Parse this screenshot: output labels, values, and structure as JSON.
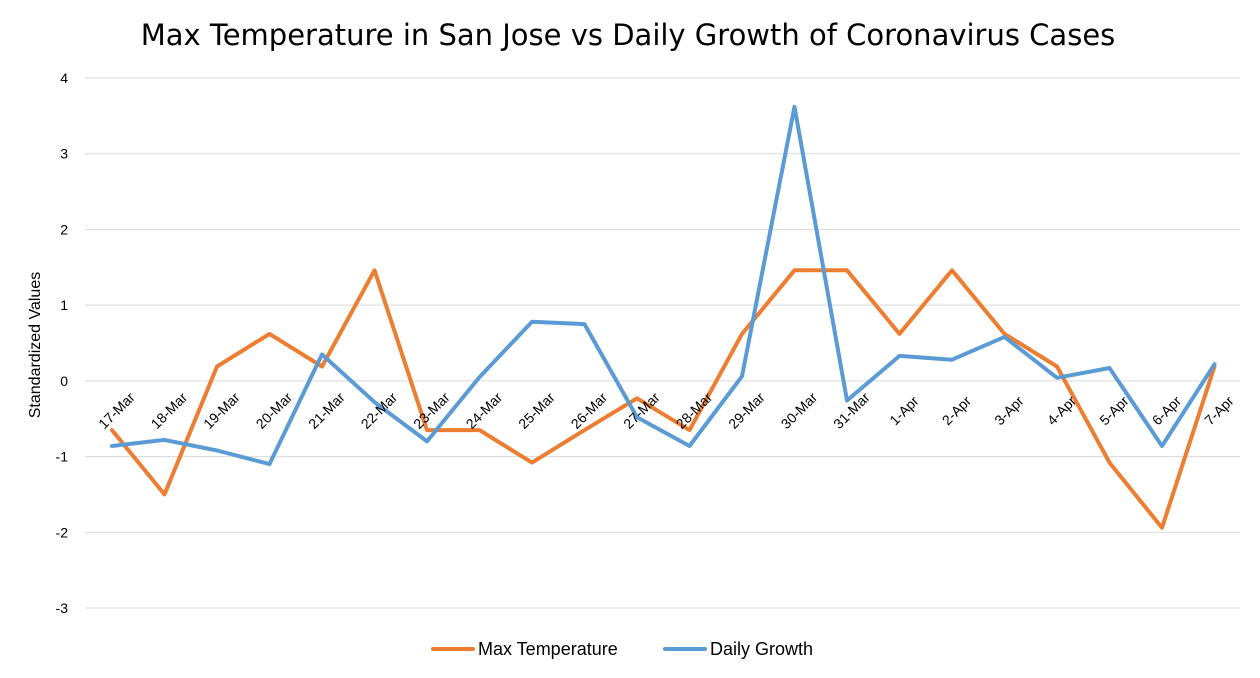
{
  "chart_data": {
    "type": "line",
    "title": "Max Temperature in San Jose vs Daily Growth of Coronavirus Cases",
    "xlabel": "",
    "ylabel": "Standardized Values",
    "ylim": [
      -3,
      4
    ],
    "yticks": [
      4,
      3,
      2,
      1,
      0,
      -1,
      -2,
      -3
    ],
    "grid": true,
    "legend_position": "bottom",
    "categories": [
      "17-Mar",
      "18-Mar",
      "19-Mar",
      "20-Mar",
      "21-Mar",
      "22-Mar",
      "23-Mar",
      "24-Mar",
      "25-Mar",
      "26-Mar",
      "27-Mar",
      "28-Mar",
      "29-Mar",
      "30-Mar",
      "31-Mar",
      "1-Apr",
      "2-Apr",
      "3-Apr",
      "4-Apr",
      "5-Apr",
      "6-Apr",
      "7-Apr"
    ],
    "series": [
      {
        "name": "Max Temperature",
        "color": "#ed7d31",
        "values": [
          -0.65,
          -1.5,
          0.19,
          0.62,
          0.19,
          1.46,
          -0.65,
          -0.65,
          -1.08,
          -0.65,
          -0.23,
          -0.65,
          0.62,
          1.46,
          1.46,
          0.62,
          1.46,
          0.62,
          0.19,
          -1.08,
          -1.94,
          0.19
        ]
      },
      {
        "name": "Daily Growth",
        "color": "#5b9bd5",
        "values": [
          -0.86,
          -0.78,
          -0.92,
          -1.1,
          0.35,
          -0.28,
          -0.8,
          0.05,
          0.78,
          0.75,
          -0.48,
          -0.86,
          0.06,
          3.62,
          -0.26,
          0.33,
          0.28,
          0.58,
          0.04,
          0.17,
          -0.86,
          0.22
        ]
      }
    ]
  }
}
